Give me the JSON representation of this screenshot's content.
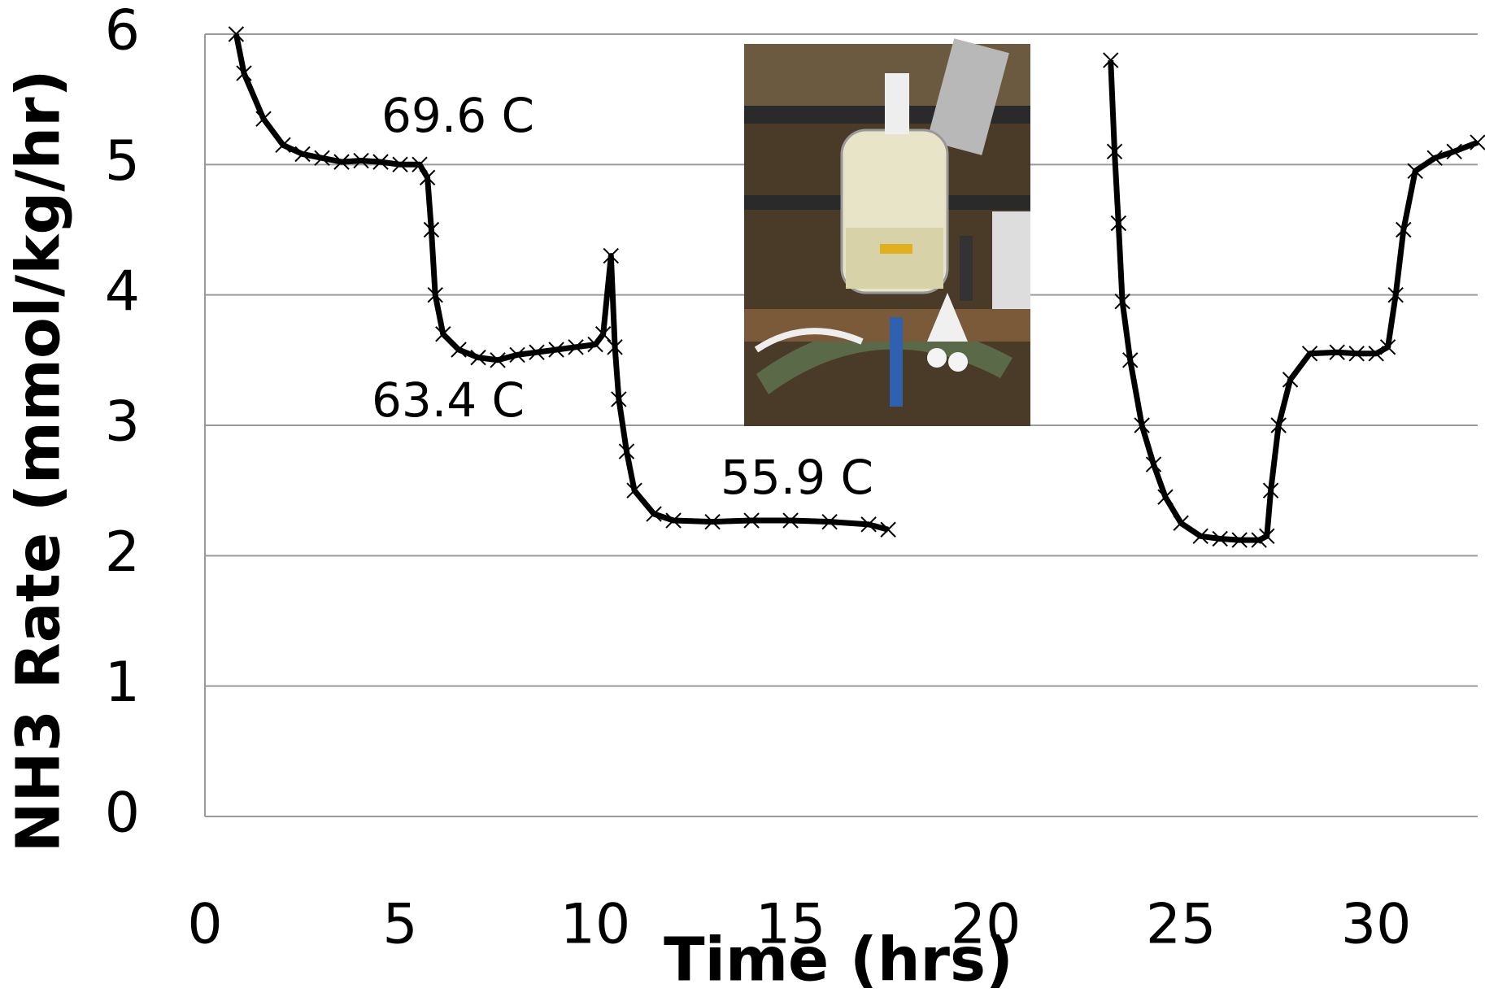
{
  "chart_data": {
    "type": "line",
    "x_label": "Time (hrs)",
    "y_label": "NH3 Rate (mmol/kg/hr)",
    "xlim": [
      0,
      32.6
    ],
    "xticks": [
      0,
      5,
      10,
      15,
      20,
      25,
      30
    ],
    "ylim": [
      0,
      6
    ],
    "yticks": [
      0,
      1,
      2,
      3,
      4,
      5,
      6
    ],
    "grid": true,
    "marker": "x",
    "annotations": [
      "69.6 C",
      "63.4 C",
      "55.9 C"
    ],
    "series": [
      {
        "color": "#000000",
        "x": [
          0.8,
          1.0,
          1.5,
          2,
          2.5,
          3,
          3.5,
          4,
          4.5,
          5,
          5.5,
          5.7,
          5.8,
          5.9,
          6.1,
          6.5,
          7,
          7.5,
          8,
          8.5,
          9,
          9.5,
          10,
          10.2,
          10.4,
          10.5,
          10.6,
          10.8,
          11,
          11.5,
          12,
          13,
          14,
          15,
          16,
          17,
          17.5,
          20,
          23.2,
          23.3,
          23.4,
          23.5,
          23.7,
          24,
          24.3,
          24.6,
          25,
          25.5,
          26,
          26.5,
          27,
          27.2,
          27.3,
          27.5,
          27.8,
          28.3,
          29,
          29.5,
          30,
          30.3,
          30.5,
          30.7,
          31,
          31.5,
          32,
          32.6
        ],
        "values": [
          6.0,
          5.7,
          5.35,
          5.15,
          5.08,
          5.05,
          5.02,
          5.03,
          5.02,
          5.0,
          5.0,
          4.9,
          4.5,
          4.0,
          3.7,
          3.58,
          3.52,
          3.5,
          3.54,
          3.56,
          3.58,
          3.6,
          3.62,
          3.7,
          4.3,
          3.6,
          3.2,
          2.8,
          2.5,
          2.32,
          2.27,
          2.26,
          2.27,
          2.27,
          2.26,
          2.24,
          2.2,
          null,
          5.8,
          5.1,
          4.55,
          3.95,
          3.5,
          3.0,
          2.7,
          2.45,
          2.25,
          2.15,
          2.13,
          2.12,
          2.12,
          2.15,
          2.5,
          3.0,
          3.35,
          3.55,
          3.56,
          3.55,
          3.55,
          3.6,
          4.0,
          4.5,
          4.95,
          5.05,
          5.1,
          5.17
        ]
      }
    ]
  }
}
